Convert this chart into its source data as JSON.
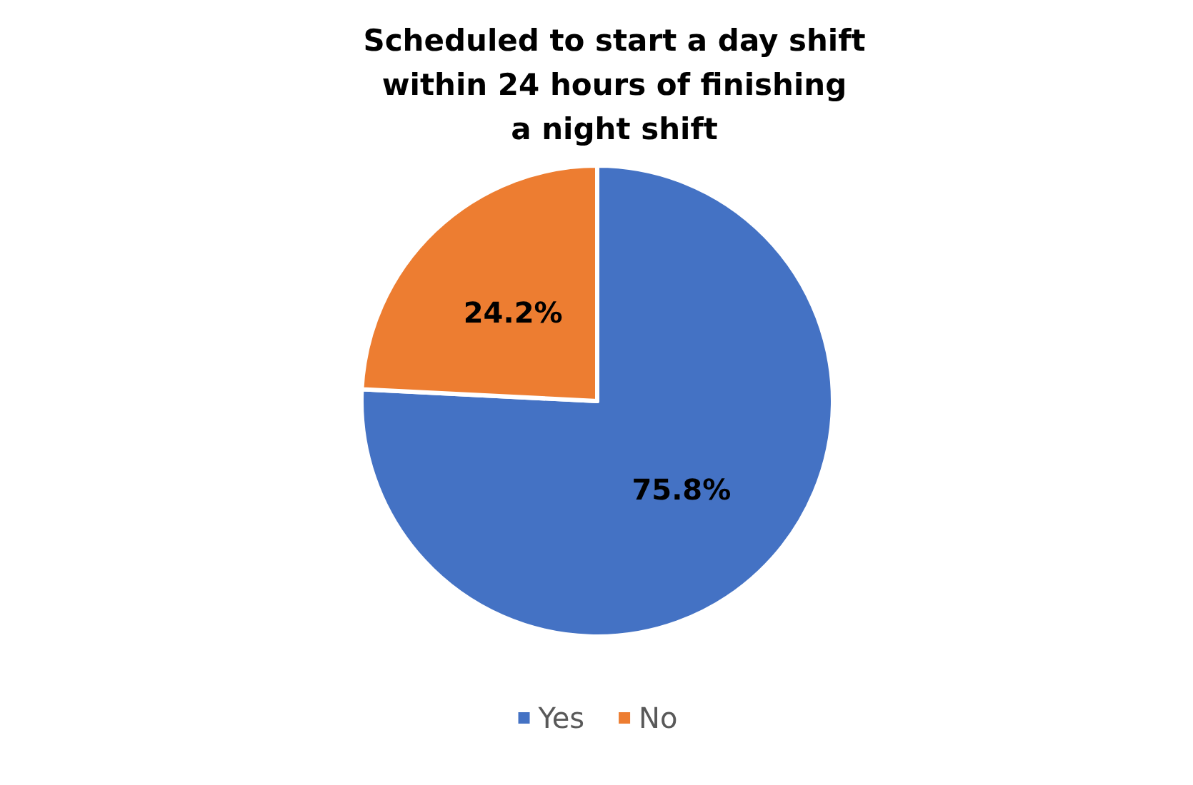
{
  "chart_data": {
    "type": "pie",
    "title": "Scheduled to start a day shift\nwithin 24 hours of finishing\na night shift",
    "categories": [
      "Yes",
      "No"
    ],
    "values": [
      75.8,
      24.2
    ],
    "colors": [
      "#4472c4",
      "#ed7d31"
    ],
    "value_labels": [
      "75.8%",
      "24.2%"
    ],
    "legend": "bottom"
  }
}
